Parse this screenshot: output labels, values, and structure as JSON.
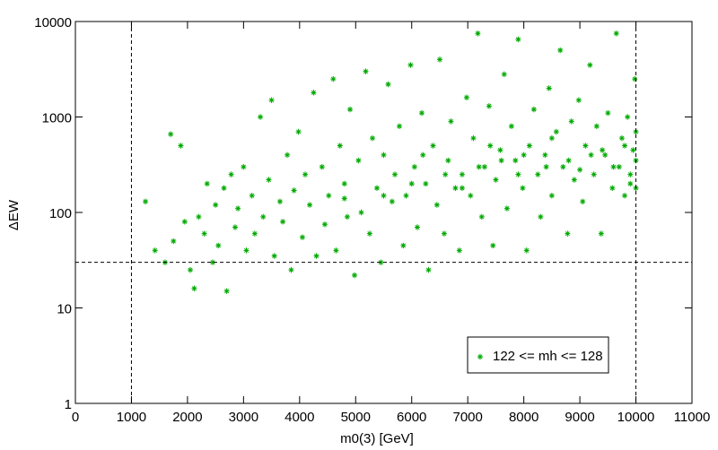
{
  "chart_data": {
    "type": "scatter",
    "xlabel": "m0(3) [GeV]",
    "ylabel": "ΔEW",
    "xlim": [
      0,
      11000
    ],
    "ylim": [
      1,
      10000
    ],
    "xticks": [
      0,
      1000,
      2000,
      3000,
      4000,
      5000,
      6000,
      7000,
      8000,
      9000,
      10000,
      11000
    ],
    "yticks": [
      1,
      10,
      100,
      1000,
      10000
    ],
    "y_log": true,
    "reference_lines": {
      "x": [
        1000,
        10000
      ],
      "y": [
        30
      ]
    },
    "legend": "lower right",
    "series": [
      {
        "name": "122 <= mh <= 128",
        "color": "#00aa00",
        "x": [
          1250,
          1420,
          1600,
          1700,
          1750,
          1880,
          1950,
          2050,
          2120,
          2200,
          2300,
          2350,
          2450,
          2500,
          2550,
          2650,
          2700,
          2780,
          2850,
          2900,
          3000,
          3050,
          3150,
          3200,
          3300,
          3350,
          3450,
          3500,
          3550,
          3650,
          3700,
          3780,
          3850,
          3900,
          3980,
          4050,
          4100,
          4180,
          4250,
          4300,
          4400,
          4450,
          4520,
          4600,
          4650,
          4720,
          4800,
          4850,
          4900,
          4980,
          5050,
          5100,
          5180,
          5250,
          5300,
          5380,
          5450,
          5500,
          5580,
          5650,
          5700,
          5780,
          5850,
          5900,
          5980,
          6050,
          6100,
          6180,
          6250,
          6300,
          6380,
          6450,
          6500,
          6580,
          6650,
          6700,
          6780,
          6850,
          6900,
          6980,
          7050,
          7100,
          7180,
          7250,
          7300,
          7380,
          7450,
          7500,
          7580,
          7650,
          7700,
          7780,
          7850,
          7900,
          7980,
          8050,
          8100,
          8180,
          8250,
          8300,
          8380,
          8450,
          8500,
          8580,
          8650,
          8700,
          8780,
          8850,
          8900,
          8980,
          9050,
          9100,
          9180,
          9250,
          9300,
          9380,
          9450,
          9500,
          9580,
          9650,
          9700,
          9750,
          9800,
          9850,
          9900,
          9950,
          9980,
          10000,
          10000,
          10000,
          6000,
          6600,
          7200,
          7600,
          8000,
          8400,
          8800,
          9200,
          9600,
          9900,
          5500,
          6200,
          6900,
          7400,
          7900,
          8500,
          9000,
          9400,
          9800,
          4800
        ],
        "values": [
          130,
          40,
          30,
          660,
          50,
          500,
          80,
          25,
          16,
          90,
          60,
          200,
          30,
          120,
          45,
          180,
          15,
          250,
          70,
          110,
          300,
          40,
          150,
          60,
          1000,
          90,
          220,
          1500,
          35,
          130,
          80,
          400,
          25,
          170,
          700,
          55,
          250,
          120,
          1800,
          35,
          300,
          75,
          150,
          2500,
          40,
          500,
          200,
          90,
          1200,
          22,
          350,
          100,
          3000,
          60,
          600,
          180,
          30,
          400,
          2200,
          130,
          250,
          800,
          45,
          150,
          3500,
          300,
          70,
          1100,
          200,
          25,
          500,
          120,
          4000,
          60,
          350,
          900,
          180,
          40,
          250,
          1600,
          150,
          600,
          7500,
          90,
          300,
          1300,
          45,
          220,
          450,
          2800,
          110,
          800,
          350,
          6500,
          180,
          40,
          500,
          1200,
          250,
          90,
          400,
          2000,
          150,
          700,
          5000,
          300,
          60,
          900,
          220,
          1500,
          130,
          500,
          3500,
          250,
          800,
          60,
          400,
          1100,
          180,
          7500,
          300,
          600,
          150,
          1000,
          200,
          450,
          2500,
          350,
          180,
          700,
          200,
          250,
          300,
          350,
          400,
          300,
          350,
          400,
          300,
          250,
          150,
          400,
          180,
          500,
          250,
          600,
          280,
          450,
          500,
          140
        ]
      }
    ]
  }
}
